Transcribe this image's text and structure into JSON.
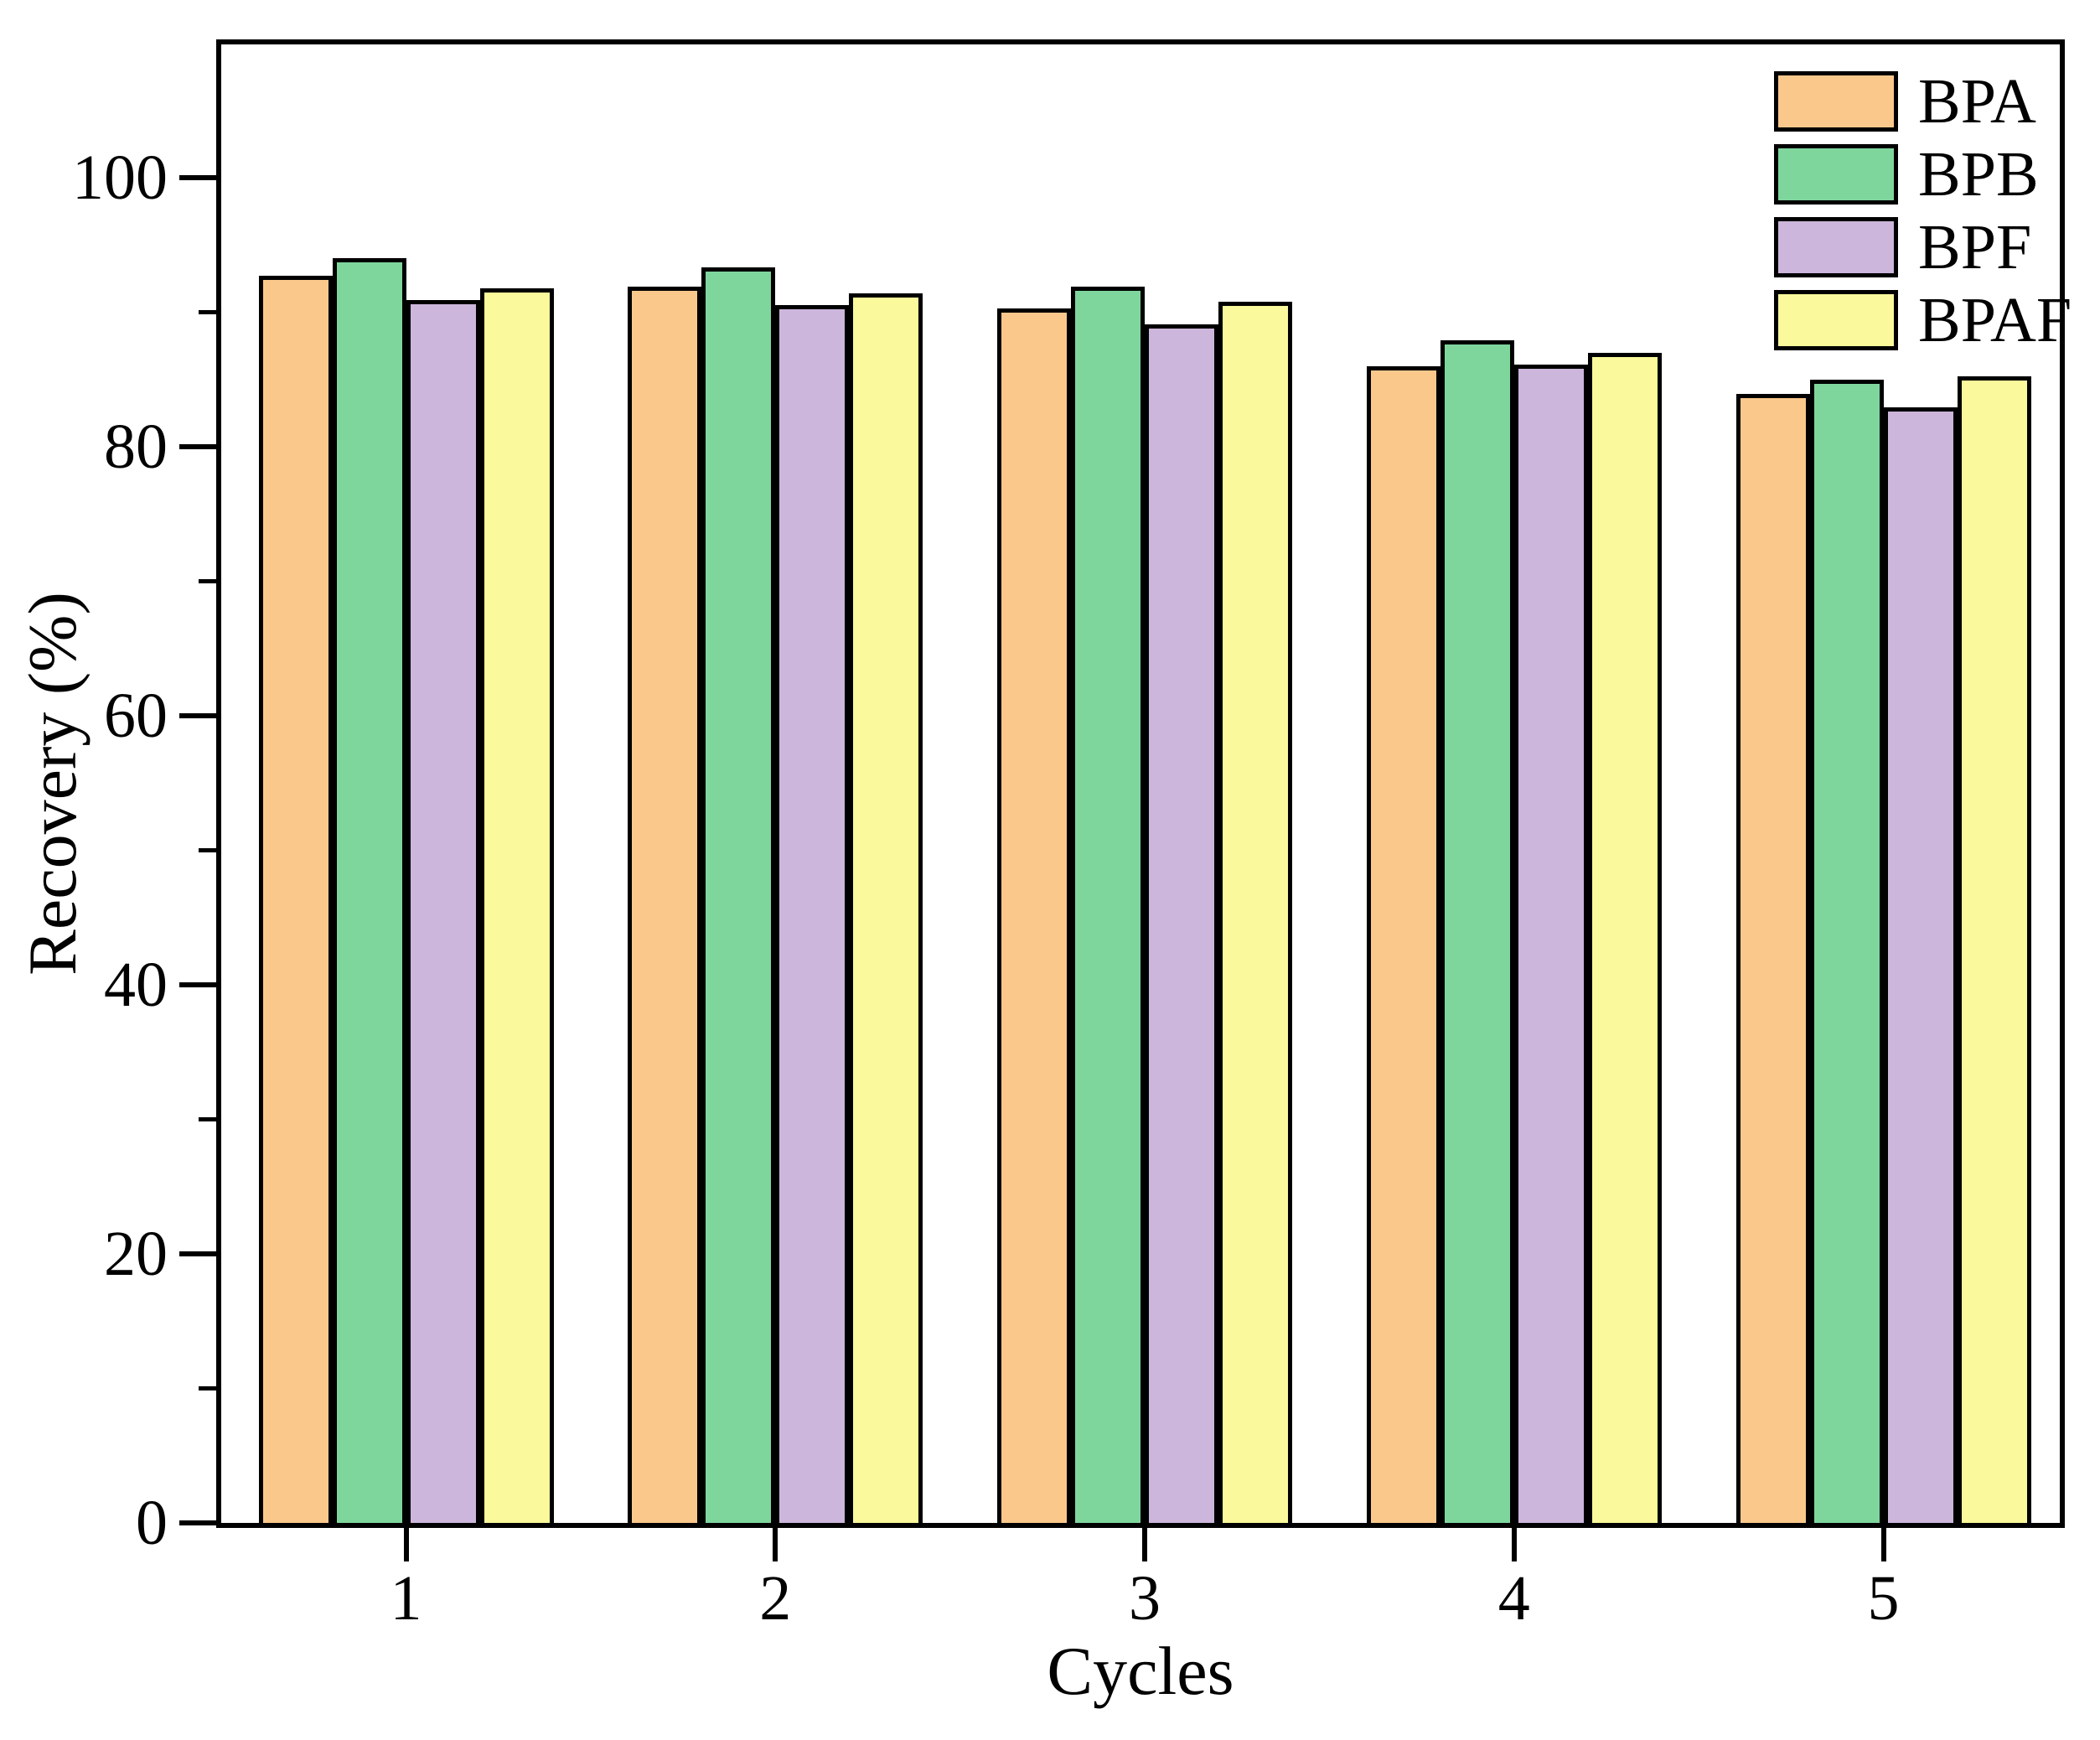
{
  "chart_data": {
    "type": "bar",
    "title": "",
    "xlabel": "Cycles",
    "ylabel": "Recovery (%)",
    "categories": [
      "1",
      "2",
      "3",
      "4",
      "5"
    ],
    "series": [
      {
        "name": "BPA",
        "color": "#FBC88C",
        "values": [
          92.7,
          91.9,
          90.3,
          86.0,
          83.9
        ]
      },
      {
        "name": "BPB",
        "color": "#7FD69D",
        "values": [
          94.0,
          93.3,
          91.9,
          87.9,
          85.0
        ]
      },
      {
        "name": "BPF",
        "color": "#CCB6DB",
        "values": [
          90.9,
          90.5,
          89.1,
          86.1,
          82.9
        ]
      },
      {
        "name": "BPAF",
        "color": "#FAF99B",
        "values": [
          91.8,
          91.4,
          90.8,
          87.0,
          85.2
        ]
      }
    ],
    "ylim": [
      0,
      110
    ],
    "y_major_ticks": [
      0,
      20,
      40,
      60,
      80,
      100
    ],
    "y_minor_ticks": [
      10,
      30,
      50,
      70,
      90
    ],
    "bar_edge_color": "#000000",
    "grid": false,
    "legend_position": "top-right-inside"
  }
}
